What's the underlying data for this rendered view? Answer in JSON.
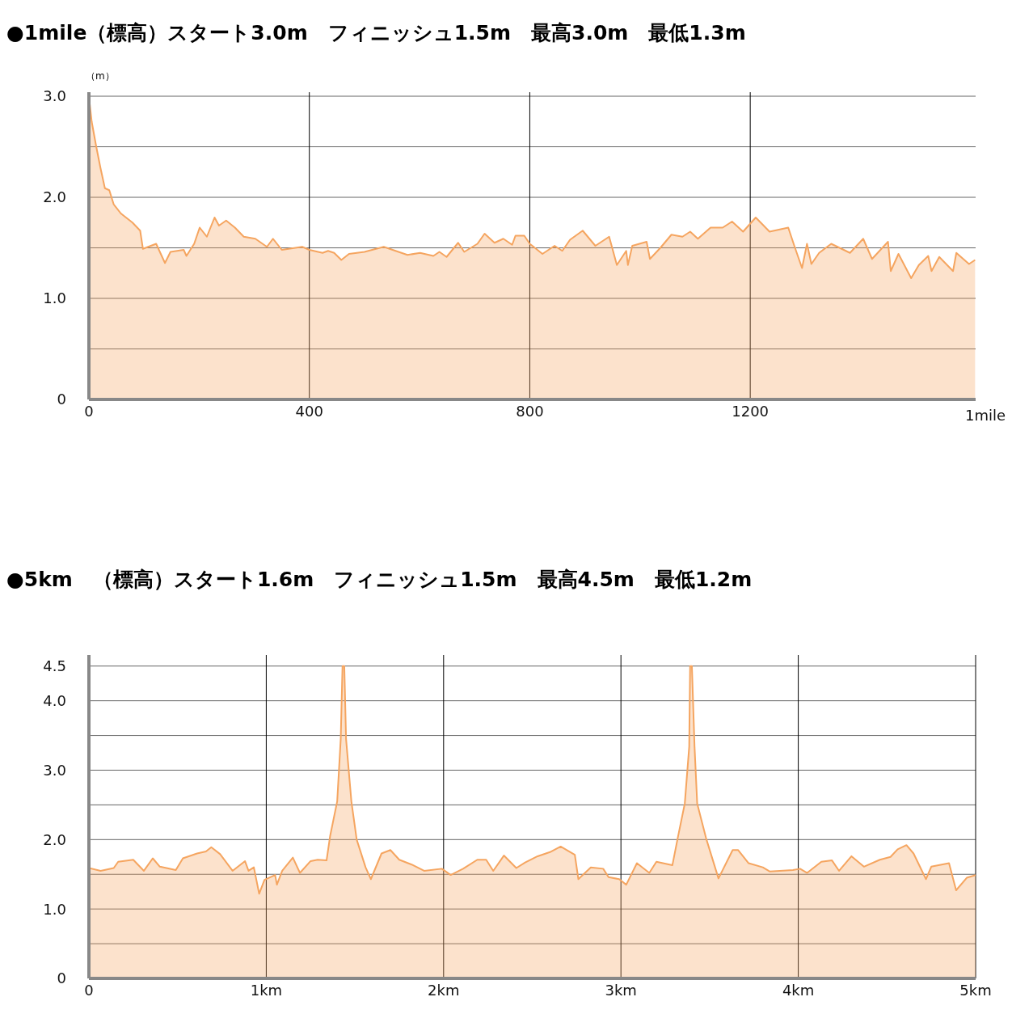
{
  "chart_data": [
    {
      "type": "area",
      "title": "●1mile（標高）スタート3.0m　フィニッシュ1.5m　最高3.0m　最低1.3m",
      "ylabel": "（m）",
      "grid": true,
      "x": [
        0,
        5,
        13,
        21,
        29,
        37,
        45,
        58,
        79,
        93,
        98,
        122,
        138,
        148,
        172,
        177,
        191,
        201,
        214,
        228,
        236,
        249,
        265,
        281,
        302,
        323,
        334,
        350,
        387,
        400,
        424,
        434,
        445,
        458,
        472,
        500,
        535,
        578,
        601,
        625,
        636,
        649,
        670,
        681,
        705,
        718,
        736,
        752,
        768,
        774,
        790,
        800,
        823,
        845,
        859,
        873,
        896,
        919,
        944,
        958,
        975,
        978,
        986,
        1012,
        1018,
        1037,
        1057,
        1077,
        1091,
        1105,
        1128,
        1150,
        1167,
        1187,
        1210,
        1235,
        1269,
        1280,
        1294,
        1303,
        1311,
        1325,
        1347,
        1381,
        1405,
        1421,
        1450,
        1455,
        1469,
        1492,
        1506,
        1523,
        1529,
        1543,
        1568,
        1574,
        1597,
        1608
      ],
      "series": [
        {
          "color": "#f5a560",
          "values": [
            3.0,
            2.75,
            2.51,
            2.29,
            2.09,
            2.07,
            1.93,
            1.84,
            1.75,
            1.67,
            1.49,
            1.54,
            1.35,
            1.46,
            1.48,
            1.42,
            1.54,
            1.7,
            1.61,
            1.8,
            1.72,
            1.77,
            1.7,
            1.61,
            1.59,
            1.51,
            1.59,
            1.48,
            1.51,
            1.48,
            1.45,
            1.47,
            1.45,
            1.38,
            1.44,
            1.46,
            1.51,
            1.43,
            1.45,
            1.42,
            1.46,
            1.41,
            1.55,
            1.46,
            1.54,
            1.64,
            1.55,
            1.59,
            1.53,
            1.62,
            1.62,
            1.54,
            1.44,
            1.52,
            1.47,
            1.58,
            1.67,
            1.52,
            1.61,
            1.33,
            1.47,
            1.33,
            1.52,
            1.56,
            1.39,
            1.5,
            1.63,
            1.61,
            1.66,
            1.59,
            1.7,
            1.7,
            1.76,
            1.66,
            1.8,
            1.66,
            1.7,
            1.52,
            1.3,
            1.54,
            1.34,
            1.45,
            1.54,
            1.45,
            1.59,
            1.39,
            1.56,
            1.27,
            1.44,
            1.2,
            1.33,
            1.42,
            1.27,
            1.41,
            1.27,
            1.45,
            1.34,
            1.38
          ]
        }
      ],
      "xlim": [
        0,
        1609
      ],
      "xticks": [
        0,
        400,
        800,
        1200
      ],
      "xlabel": "1mile",
      "ylim": [
        0,
        3.04
      ],
      "yticks": [
        0,
        {
          "value": 0.5,
          "label": null
        },
        {
          "value": 1,
          "label": "1.0"
        },
        {
          "value": 1.5,
          "label": null
        },
        {
          "value": 2,
          "label": "2.0"
        },
        {
          "value": 2.5,
          "label": null
        },
        {
          "value": 3,
          "label": "3.0"
        }
      ]
    },
    {
      "type": "area",
      "title": "●5km　（標高）スタート1.6m　フィニッシュ1.5m　最高4.5m　最低1.2m",
      "grid": true,
      "x": [
        0,
        0.066,
        0.14,
        0.165,
        0.25,
        0.31,
        0.36,
        0.4,
        0.49,
        0.53,
        0.61,
        0.66,
        0.69,
        0.74,
        0.81,
        0.88,
        0.9,
        0.93,
        0.96,
        0.99,
        1.05,
        1.06,
        1.09,
        1.15,
        1.19,
        1.25,
        1.29,
        1.34,
        1.36,
        1.4,
        1.42,
        1.43,
        1.44,
        1.45,
        1.48,
        1.51,
        1.56,
        1.59,
        1.65,
        1.7,
        1.75,
        1.82,
        1.89,
        1.99,
        2.04,
        2.11,
        2.19,
        2.24,
        2.28,
        2.34,
        2.41,
        2.46,
        2.53,
        2.6,
        2.66,
        2.74,
        2.76,
        2.83,
        2.9,
        2.93,
        2.99,
        3.03,
        3.09,
        3.16,
        3.2,
        3.29,
        3.32,
        3.36,
        3.385,
        3.39,
        3.4,
        3.415,
        3.43,
        3.48,
        3.55,
        3.63,
        3.66,
        3.72,
        3.8,
        3.84,
        3.97,
        4.01,
        4.05,
        4.13,
        4.19,
        4.23,
        4.3,
        4.37,
        4.46,
        4.52,
        4.56,
        4.61,
        4.65,
        4.72,
        4.75,
        4.85,
        4.89,
        4.95,
        5.0
      ],
      "series": [
        {
          "color": "#f5a560",
          "values": [
            1.59,
            1.55,
            1.59,
            1.68,
            1.71,
            1.55,
            1.73,
            1.61,
            1.56,
            1.73,
            1.8,
            1.83,
            1.89,
            1.79,
            1.55,
            1.69,
            1.55,
            1.6,
            1.22,
            1.42,
            1.49,
            1.35,
            1.55,
            1.74,
            1.52,
            1.69,
            1.71,
            1.7,
            2.05,
            2.55,
            3.45,
            4.5,
            4.5,
            3.45,
            2.55,
            2.0,
            1.6,
            1.43,
            1.8,
            1.85,
            1.71,
            1.64,
            1.55,
            1.58,
            1.49,
            1.58,
            1.71,
            1.71,
            1.55,
            1.77,
            1.59,
            1.67,
            1.76,
            1.82,
            1.9,
            1.78,
            1.43,
            1.6,
            1.58,
            1.46,
            1.43,
            1.35,
            1.66,
            1.52,
            1.68,
            1.63,
            2.02,
            2.52,
            3.34,
            4.5,
            4.5,
            3.34,
            2.52,
            2.02,
            1.44,
            1.85,
            1.85,
            1.66,
            1.6,
            1.54,
            1.56,
            1.58,
            1.52,
            1.68,
            1.7,
            1.55,
            1.76,
            1.61,
            1.71,
            1.75,
            1.86,
            1.92,
            1.8,
            1.43,
            1.61,
            1.66,
            1.27,
            1.45,
            1.49
          ]
        }
      ],
      "xlim": [
        0,
        5
      ],
      "xticks": [
        0,
        {
          "value": 1,
          "label": "1km"
        },
        {
          "value": 2,
          "label": "2km"
        },
        {
          "value": 3,
          "label": "3km"
        },
        {
          "value": 4,
          "label": "4km"
        },
        {
          "value": 5,
          "label": "5km"
        }
      ],
      "ylim": [
        0,
        4.66
      ],
      "yticks": [
        0,
        {
          "value": 0.5,
          "label": null
        },
        {
          "value": 1,
          "label": "1.0"
        },
        {
          "value": 1.5,
          "label": null
        },
        {
          "value": 2,
          "label": "2.0"
        },
        {
          "value": 2.5,
          "label": null
        },
        {
          "value": 3,
          "label": "3.0"
        },
        {
          "value": 3.5,
          "label": null
        },
        {
          "value": 4,
          "label": "4.0"
        },
        {
          "value": 4.5,
          "label": "4.5"
        }
      ]
    }
  ]
}
